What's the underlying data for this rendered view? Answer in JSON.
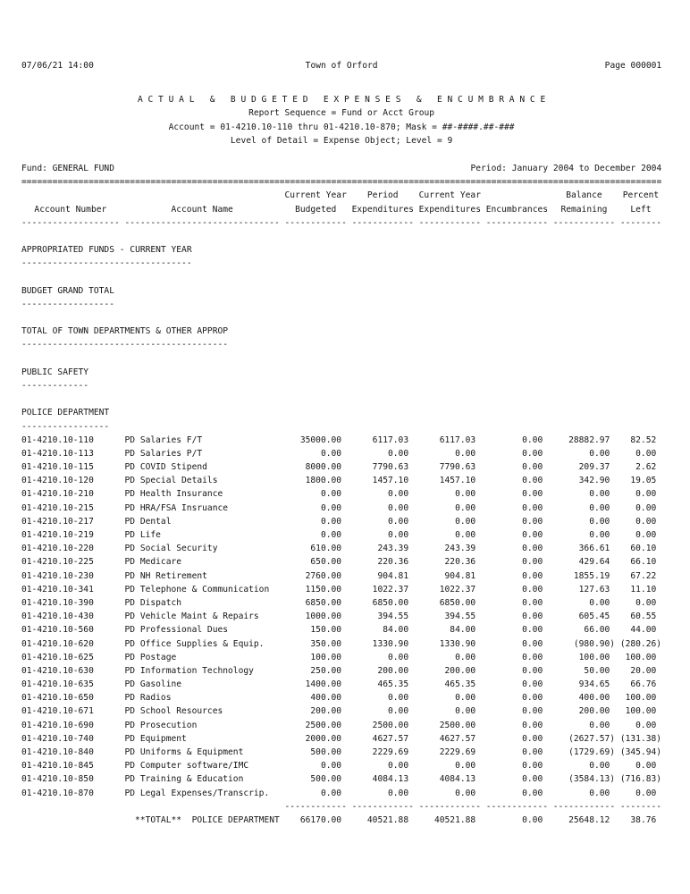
{
  "page": {
    "printed_datetime": "07/06/21 14:00",
    "org_name": "Town of Orford",
    "page_label": "Page 000001",
    "title": "A C T U A L   &   B U D G E T E D   E X P E N S E S   &   E N C U M B R A N C E",
    "subtitle_lines": [
      "Report Sequence = Fund or Acct Group",
      "Account = 01-4210.10-110 thru 01-4210.10-870; Mask = ##-####.##-###",
      "Level of Detail = Expense Object; Level = 9"
    ],
    "fund_label": "Fund: GENERAL FUND",
    "period_label": "Period: January 2004 to December 2004"
  },
  "table": {
    "header_row1": [
      "",
      "",
      "Current Year",
      "Period",
      "Current Year",
      "",
      "Balance",
      "Percent"
    ],
    "header_row2": [
      "Account Number",
      "Account Name",
      "Budgeted",
      "Expenditures",
      "Expenditures",
      "Encumbrances",
      "Remaining",
      "Left"
    ]
  },
  "sections": [
    {
      "heading": "APPROPRIATED FUNDS - CURRENT YEAR"
    },
    {
      "heading": "BUDGET GRAND TOTAL"
    },
    {
      "heading": "TOTAL OF TOWN DEPARTMENTS & OTHER APPROP"
    },
    {
      "heading": "PUBLIC SAFETY"
    },
    {
      "heading": "POLICE DEPARTMENT"
    }
  ],
  "rows": [
    [
      "01-4210.10-110",
      "PD Salaries F/T",
      "35000.00",
      "6117.03",
      "6117.03",
      "0.00",
      "28882.97",
      "82.52"
    ],
    [
      "01-4210.10-113",
      "PD Salaries P/T",
      "0.00",
      "0.00",
      "0.00",
      "0.00",
      "0.00",
      "0.00"
    ],
    [
      "01-4210.10-115",
      "PD COVID Stipend",
      "8000.00",
      "7790.63",
      "7790.63",
      "0.00",
      "209.37",
      "2.62"
    ],
    [
      "01-4210.10-120",
      "PD Special Details",
      "1800.00",
      "1457.10",
      "1457.10",
      "0.00",
      "342.90",
      "19.05"
    ],
    [
      "01-4210.10-210",
      "PD Health Insurance",
      "0.00",
      "0.00",
      "0.00",
      "0.00",
      "0.00",
      "0.00"
    ],
    [
      "01-4210.10-215",
      "PD HRA/FSA Insruance",
      "0.00",
      "0.00",
      "0.00",
      "0.00",
      "0.00",
      "0.00"
    ],
    [
      "01-4210.10-217",
      "PD Dental",
      "0.00",
      "0.00",
      "0.00",
      "0.00",
      "0.00",
      "0.00"
    ],
    [
      "01-4210.10-219",
      "PD Life",
      "0.00",
      "0.00",
      "0.00",
      "0.00",
      "0.00",
      "0.00"
    ],
    [
      "01-4210.10-220",
      "PD Social Security",
      "610.00",
      "243.39",
      "243.39",
      "0.00",
      "366.61",
      "60.10"
    ],
    [
      "01-4210.10-225",
      "PD Medicare",
      "650.00",
      "220.36",
      "220.36",
      "0.00",
      "429.64",
      "66.10"
    ],
    [
      "01-4210.10-230",
      "PD NH Retirement",
      "2760.00",
      "904.81",
      "904.81",
      "0.00",
      "1855.19",
      "67.22"
    ],
    [
      "01-4210.10-341",
      "PD Telephone & Communication",
      "1150.00",
      "1022.37",
      "1022.37",
      "0.00",
      "127.63",
      "11.10"
    ],
    [
      "01-4210.10-390",
      "PD Dispatch",
      "6850.00",
      "6850.00",
      "6850.00",
      "0.00",
      "0.00",
      "0.00"
    ],
    [
      "01-4210.10-430",
      "PD Vehicle Maint & Repairs",
      "1000.00",
      "394.55",
      "394.55",
      "0.00",
      "605.45",
      "60.55"
    ],
    [
      "01-4210.10-560",
      "PD Professional Dues",
      "150.00",
      "84.00",
      "84.00",
      "0.00",
      "66.00",
      "44.00"
    ],
    [
      "01-4210.10-620",
      "PD Office Supplies & Equip.",
      "350.00",
      "1330.90",
      "1330.90",
      "0.00",
      "(980.90)",
      "(280.26)"
    ],
    [
      "01-4210.10-625",
      "PD Postage",
      "100.00",
      "0.00",
      "0.00",
      "0.00",
      "100.00",
      "100.00"
    ],
    [
      "01-4210.10-630",
      "PD Information Technology",
      "250.00",
      "200.00",
      "200.00",
      "0.00",
      "50.00",
      "20.00"
    ],
    [
      "01-4210.10-635",
      "PD Gasoline",
      "1400.00",
      "465.35",
      "465.35",
      "0.00",
      "934.65",
      "66.76"
    ],
    [
      "01-4210.10-650",
      "PD Radios",
      "400.00",
      "0.00",
      "0.00",
      "0.00",
      "400.00",
      "100.00"
    ],
    [
      "01-4210.10-671",
      "PD School Resources",
      "200.00",
      "0.00",
      "0.00",
      "0.00",
      "200.00",
      "100.00"
    ],
    [
      "01-4210.10-690",
      "PD Prosecution",
      "2500.00",
      "2500.00",
      "2500.00",
      "0.00",
      "0.00",
      "0.00"
    ],
    [
      "01-4210.10-740",
      "PD Equipment",
      "2000.00",
      "4627.57",
      "4627.57",
      "0.00",
      "(2627.57)",
      "(131.38)"
    ],
    [
      "01-4210.10-840",
      "PD Uniforms & Equipment",
      "500.00",
      "2229.69",
      "2229.69",
      "0.00",
      "(1729.69)",
      "(345.94)"
    ],
    [
      "01-4210.10-845",
      "PD Computer software/IMC",
      "0.00",
      "0.00",
      "0.00",
      "0.00",
      "0.00",
      "0.00"
    ],
    [
      "01-4210.10-850",
      "PD Training & Education",
      "500.00",
      "4084.13",
      "4084.13",
      "0.00",
      "(3584.13)",
      "(716.83)"
    ],
    [
      "01-4210.10-870",
      "PD Legal Expenses/Transcrip.",
      "0.00",
      "0.00",
      "0.00",
      "0.00",
      "0.00",
      "0.00"
    ]
  ],
  "total": {
    "label": "**TOTAL**",
    "name": "POLICE DEPARTMENT",
    "values": [
      "66170.00",
      "40521.88",
      "40521.88",
      "0.00",
      "25648.12",
      "38.76"
    ]
  }
}
